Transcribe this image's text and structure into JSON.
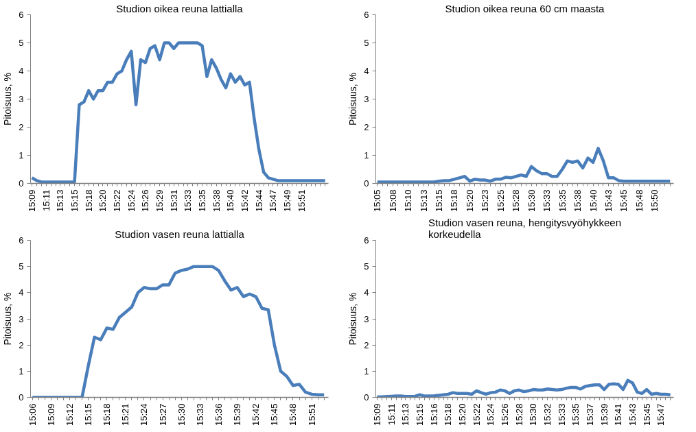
{
  "chart_data": [
    {
      "type": "line",
      "title": "Studion oikea reuna lattialla",
      "ylabel": "Pitoisuus, %",
      "ylim": [
        0,
        6
      ],
      "yticks": [
        0,
        1,
        2,
        3,
        4,
        5,
        6
      ],
      "categories": [
        "15:09",
        null,
        null,
        "15:11",
        null,
        null,
        "15:13",
        null,
        null,
        "15:15",
        null,
        null,
        "15:18",
        null,
        null,
        "15:20",
        null,
        null,
        "15:22",
        null,
        null,
        "15:24",
        null,
        null,
        "15:26",
        null,
        null,
        "15:29",
        null,
        null,
        "15:31",
        null,
        null,
        "15:33",
        null,
        null,
        "15:35",
        null,
        null,
        "15:38",
        null,
        null,
        "15:40",
        null,
        null,
        "15:42",
        null,
        null,
        "15:44",
        null,
        null,
        "15:47",
        null,
        null,
        "15:49",
        null,
        null,
        "15:51",
        null,
        null,
        null,
        null,
        null
      ],
      "series": [
        {
          "color": "#4a7ebb",
          "values": [
            0.2,
            0.1,
            0.05,
            0.05,
            0.05,
            0.05,
            0.05,
            0.05,
            0.05,
            0.05,
            2.8,
            2.9,
            3.3,
            3.0,
            3.3,
            3.3,
            3.6,
            3.6,
            3.9,
            4.0,
            4.4,
            4.7,
            2.8,
            4.4,
            4.3,
            4.8,
            4.9,
            4.4,
            5.0,
            5.0,
            4.8,
            5.0,
            5.0,
            5.0,
            5.0,
            5.0,
            4.9,
            3.8,
            4.4,
            4.1,
            3.7,
            3.4,
            3.9,
            3.6,
            3.8,
            3.5,
            3.6,
            2.3,
            1.2,
            0.4,
            0.2,
            0.15,
            0.1,
            0.1,
            0.1,
            0.1,
            0.1,
            0.1,
            0.1,
            0.1,
            0.1,
            0.1,
            0.1
          ]
        }
      ]
    },
    {
      "type": "line",
      "title": "Studion oikea reuna 60 cm maasta",
      "ylabel": "Pitoisuus, %",
      "ylim": [
        0,
        6
      ],
      "yticks": [
        0,
        1,
        2,
        3,
        4,
        5,
        6
      ],
      "categories": [
        "15:05",
        null,
        null,
        "15:08",
        null,
        null,
        "15:10",
        null,
        null,
        "15:13",
        null,
        null,
        "15:15",
        null,
        null,
        "15:18",
        null,
        null,
        "15:20",
        null,
        null,
        "15:23",
        null,
        null,
        "15:25",
        null,
        null,
        "15:28",
        null,
        null,
        "15:30",
        null,
        null,
        "15:33",
        null,
        null,
        "15:35",
        null,
        null,
        "15:38",
        null,
        null,
        "15:40",
        null,
        null,
        "15:43",
        null,
        null,
        "15:45",
        null,
        null,
        "15:48",
        null,
        null,
        "15:50",
        null,
        null,
        null
      ],
      "series": [
        {
          "color": "#4a7ebb",
          "values": [
            0.05,
            0.05,
            0.05,
            0.05,
            0.05,
            0.05,
            0.05,
            0.05,
            0.05,
            0.05,
            0.05,
            0.05,
            0.08,
            0.1,
            0.1,
            0.15,
            0.2,
            0.25,
            0.08,
            0.15,
            0.12,
            0.12,
            0.08,
            0.15,
            0.15,
            0.22,
            0.2,
            0.25,
            0.3,
            0.25,
            0.6,
            0.45,
            0.35,
            0.35,
            0.25,
            0.25,
            0.5,
            0.8,
            0.75,
            0.8,
            0.55,
            0.9,
            0.75,
            1.25,
            0.8,
            0.2,
            0.2,
            0.1,
            0.08,
            0.08,
            0.08,
            0.08,
            0.08,
            0.08,
            0.08,
            0.08,
            0.08,
            0.08
          ]
        }
      ]
    },
    {
      "type": "line",
      "title": "Studion vasen reuna lattialla",
      "ylabel": "Pitoisuus, %",
      "ylim": [
        0,
        6
      ],
      "yticks": [
        0,
        1,
        2,
        3,
        4,
        5,
        6
      ],
      "categories": [
        "15:06",
        null,
        null,
        "15:09",
        null,
        null,
        "15:12",
        null,
        null,
        "15:15",
        null,
        null,
        "15:18",
        null,
        null,
        "15:21",
        null,
        null,
        "15:24",
        null,
        null,
        "15:27",
        null,
        null,
        "15:30",
        null,
        null,
        "15:33",
        null,
        null,
        "15:36",
        null,
        null,
        "15:39",
        null,
        null,
        "15:42",
        null,
        null,
        "15:45",
        null,
        null,
        "15:48",
        null,
        null,
        "15:51",
        null,
        null
      ],
      "series": [
        {
          "color": "#4a7ebb",
          "values": [
            0,
            0,
            0,
            0,
            0,
            0,
            0,
            0,
            0,
            1.2,
            2.3,
            2.2,
            2.65,
            2.6,
            3.05,
            3.25,
            3.45,
            4.0,
            4.2,
            4.15,
            4.15,
            4.3,
            4.3,
            4.75,
            4.85,
            4.9,
            5.0,
            5.0,
            5.0,
            5.0,
            4.85,
            4.45,
            4.1,
            4.2,
            3.85,
            3.95,
            3.85,
            3.4,
            3.35,
            2.0,
            1.0,
            0.8,
            0.45,
            0.5,
            0.2,
            0.12,
            0.1,
            0.1
          ]
        }
      ]
    },
    {
      "type": "line",
      "title": "Studion vasen reuna, hengitysvyöhykkeen korkeudella",
      "ylabel": "Pitoisuus, %",
      "ylim": [
        0,
        6
      ],
      "yticks": [
        0,
        1,
        2,
        3,
        4,
        5,
        6
      ],
      "categories": [
        "15:09",
        null,
        null,
        "15:11",
        null,
        null,
        "15:13",
        null,
        null,
        "15:15",
        null,
        null,
        "15:16",
        null,
        null,
        "15:18",
        null,
        null,
        "15:20",
        null,
        null,
        "15:22",
        null,
        null,
        "15:24",
        null,
        null,
        "15:26",
        null,
        null,
        "15:28",
        null,
        null,
        "15:30",
        null,
        null,
        "15:32",
        null,
        null,
        "15:33",
        null,
        null,
        "15:35",
        null,
        null,
        "15:37",
        null,
        null,
        "15:39",
        null,
        null,
        "15:41",
        null,
        null,
        "15:43",
        null,
        null,
        "15:45",
        null,
        null,
        "15:47",
        null,
        null
      ],
      "series": [
        {
          "color": "#4a7ebb",
          "values": [
            0.02,
            0.02,
            0.03,
            0.04,
            0.05,
            0.05,
            0.03,
            0.03,
            0.04,
            0.1,
            0.05,
            0.05,
            0.06,
            0.08,
            0.1,
            0.12,
            0.18,
            0.15,
            0.15,
            0.15,
            0.12,
            0.25,
            0.18,
            0.12,
            0.18,
            0.2,
            0.28,
            0.25,
            0.15,
            0.25,
            0.28,
            0.22,
            0.25,
            0.3,
            0.28,
            0.28,
            0.32,
            0.3,
            0.28,
            0.3,
            0.35,
            0.38,
            0.38,
            0.32,
            0.42,
            0.45,
            0.48,
            0.48,
            0.3,
            0.5,
            0.52,
            0.5,
            0.3,
            0.65,
            0.55,
            0.2,
            0.15,
            0.3,
            0.12,
            0.15,
            0.12,
            0.12,
            0.1
          ]
        }
      ]
    }
  ]
}
